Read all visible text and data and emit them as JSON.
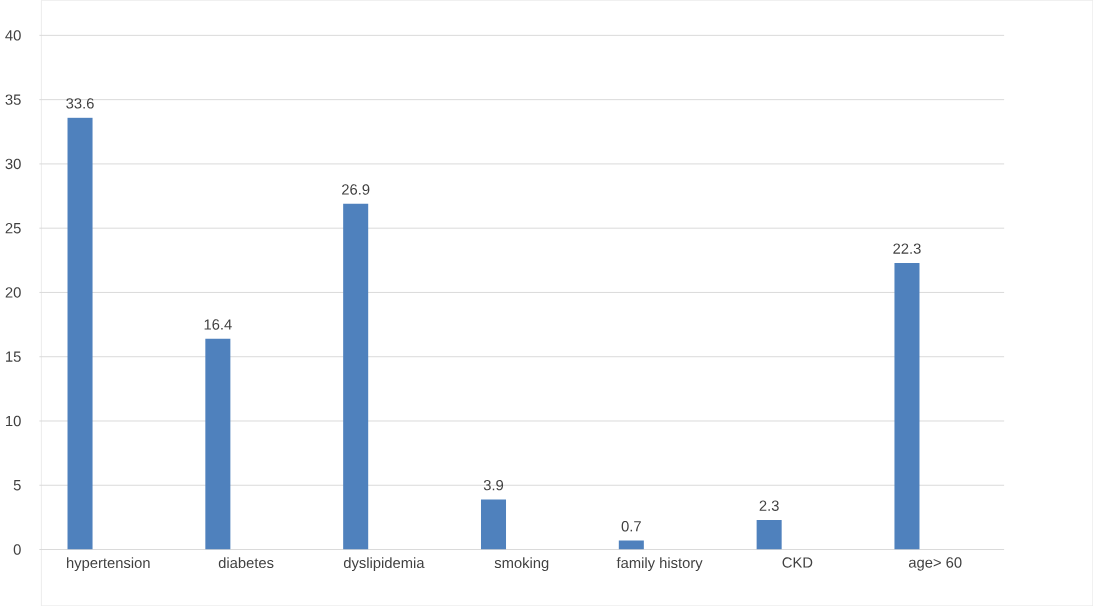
{
  "chart_data": {
    "type": "bar",
    "categories": [
      "hypertension",
      "diabetes",
      "dyslipidemia",
      "smoking",
      "family history",
      "CKD",
      "age> 60"
    ],
    "values": [
      33.6,
      16.4,
      26.9,
      3.9,
      0.7,
      2.3,
      22.3
    ],
    "color": "#4f81bd",
    "ylim": [
      0,
      40
    ],
    "yticks": [
      0,
      5,
      10,
      15,
      20,
      25,
      30,
      35,
      40
    ],
    "grid": "y",
    "data_labels": true
  }
}
